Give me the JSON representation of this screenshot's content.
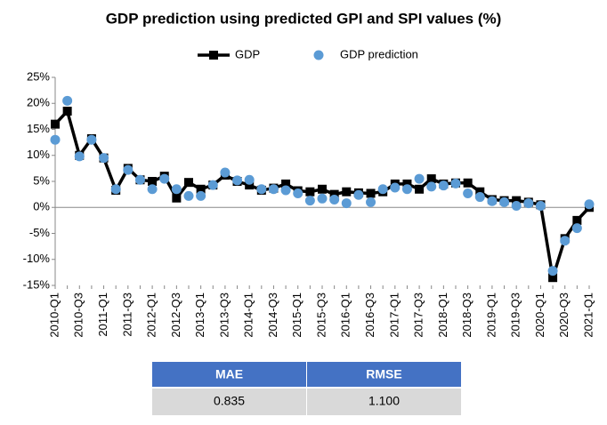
{
  "chart_data": {
    "type": "line",
    "title": "GDP prediction using predicted GPI and SPI values (%)",
    "categories": [
      "2010-Q1",
      null,
      "2010-Q3",
      null,
      "2011-Q1",
      null,
      "2011-Q3",
      null,
      "2012-Q1",
      null,
      "2012-Q3",
      null,
      "2013-Q1",
      null,
      "2013-Q3",
      null,
      "2014-Q1",
      null,
      "2014-Q3",
      null,
      "2015-Q1",
      null,
      "2015-Q3",
      null,
      "2016-Q1",
      null,
      "2016-Q3",
      null,
      "2017-Q1",
      null,
      "2017-Q3",
      null,
      "2018-Q1",
      null,
      "2018-Q3",
      null,
      "2019-Q1",
      null,
      "2019-Q3",
      null,
      "2020-Q1",
      null,
      "2020-Q3",
      null,
      "2021-Q1"
    ],
    "series": [
      {
        "name": "GDP",
        "color": "#000000",
        "style": "line-marker",
        "values": [
          16,
          18.5,
          10,
          13.2,
          9.5,
          3.3,
          7.5,
          5.3,
          5,
          6,
          1.8,
          4.8,
          3.5,
          4.3,
          6.2,
          5,
          4.3,
          3.3,
          3.7,
          4.5,
          3.2,
          3,
          3.5,
          2.5,
          3,
          2.8,
          2.7,
          3,
          4.5,
          4.5,
          3.5,
          5.5,
          4.5,
          4.7,
          4.7,
          3,
          1.5,
          1.3,
          1.3,
          1,
          0.5,
          -13.5,
          -6,
          -2.5,
          0
        ]
      },
      {
        "name": "GDP prediction",
        "color": "#5b9bd5",
        "style": "marker",
        "values": [
          13,
          20.5,
          9.8,
          13,
          9.5,
          3.5,
          7.2,
          5.3,
          3.5,
          5.5,
          3.5,
          2.2,
          2.2,
          4.3,
          6.7,
          5.2,
          5.3,
          3.5,
          3.5,
          3.3,
          2.7,
          1.3,
          1.7,
          1.5,
          0.8,
          2.4,
          1,
          3.5,
          3.8,
          3.5,
          5.5,
          4,
          4.2,
          4.6,
          2.7,
          2,
          1.2,
          1,
          0.3,
          0.8,
          0.3,
          -12.2,
          -6.4,
          -4,
          0.6
        ]
      }
    ],
    "ylim": [
      -15,
      25
    ],
    "yticks": [
      {
        "value": -15,
        "label": "-15%"
      },
      {
        "value": -10,
        "label": "-10%"
      },
      {
        "value": -5,
        "label": "-5%"
      },
      {
        "value": 0,
        "label": "0%"
      },
      {
        "value": 5,
        "label": "5%"
      },
      {
        "value": 10,
        "label": "10%"
      },
      {
        "value": 15,
        "label": "15%"
      },
      {
        "value": 20,
        "label": "20%"
      },
      {
        "value": 25,
        "label": "25%"
      }
    ],
    "legend": "top"
  },
  "table": {
    "headers": [
      "MAE",
      "RMSE"
    ],
    "rows": [
      [
        "0.835",
        "1.100"
      ]
    ]
  }
}
